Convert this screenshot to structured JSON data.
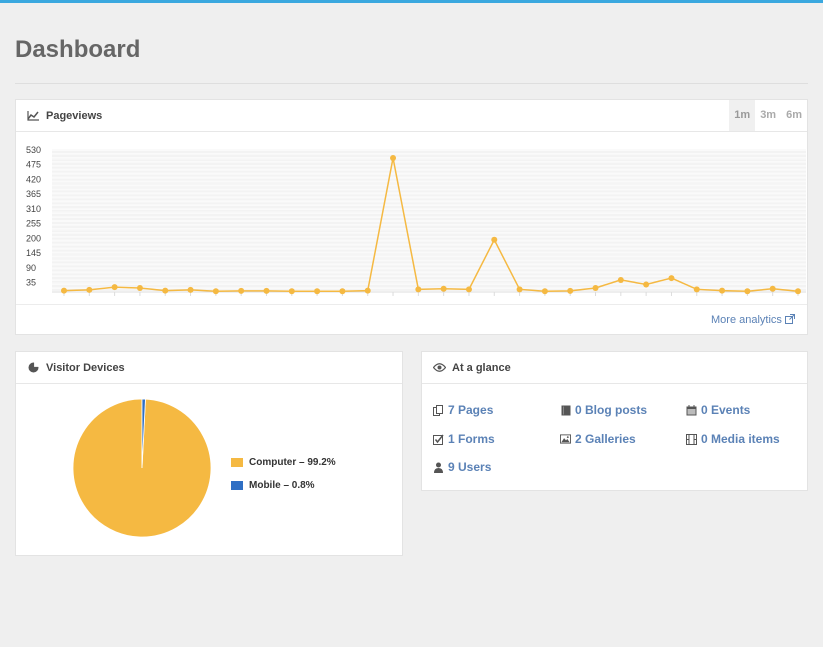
{
  "page": {
    "title": "Dashboard"
  },
  "colors": {
    "accent": "#3aa8df",
    "series": "#f5b942",
    "mobile": "#2f6fc4",
    "link": "#5b82b6"
  },
  "pageviews": {
    "title": "Pageviews",
    "icon": "line-chart-icon",
    "ranges": [
      {
        "label": "1m",
        "active": true
      },
      {
        "label": "3m",
        "active": false
      },
      {
        "label": "6m",
        "active": false
      }
    ],
    "more_link": "More analytics"
  },
  "chart_data": [
    {
      "type": "line",
      "title": "",
      "xlabel": "",
      "ylabel": "",
      "yticks": [
        35,
        90,
        145,
        200,
        255,
        310,
        365,
        420,
        475,
        530
      ],
      "ylim": [
        0,
        530
      ],
      "grid": true,
      "series": [
        {
          "values": [
            5,
            8,
            18,
            15,
            5,
            8,
            3,
            4,
            4,
            3,
            3,
            3,
            5,
            500,
            10,
            12,
            10,
            195,
            10,
            3,
            4,
            15,
            45,
            28,
            52,
            10,
            5,
            3,
            12,
            3
          ]
        }
      ]
    },
    {
      "type": "pie",
      "title": "",
      "slices": [
        {
          "label": "Computer",
          "value": 99.2,
          "color": "#f5b942"
        },
        {
          "label": "Mobile",
          "value": 0.8,
          "color": "#2f6fc4"
        }
      ]
    }
  ],
  "devices": {
    "title": "Visitor Devices",
    "icon": "pie-chart-icon",
    "legend": [
      "Computer – 99.2%",
      "Mobile – 0.8%"
    ]
  },
  "glance": {
    "title": "At a glance",
    "icon": "eye-icon",
    "items": [
      {
        "label": "7 Pages",
        "icon": "pages-icon"
      },
      {
        "label": "0 Blog posts",
        "icon": "book-icon"
      },
      {
        "label": "0 Events",
        "icon": "calendar-icon"
      },
      {
        "label": "1 Forms",
        "icon": "check-square-icon"
      },
      {
        "label": "2 Galleries",
        "icon": "image-icon"
      },
      {
        "label": "0 Media items",
        "icon": "film-icon"
      },
      {
        "label": "9 Users",
        "icon": "user-icon"
      }
    ]
  }
}
